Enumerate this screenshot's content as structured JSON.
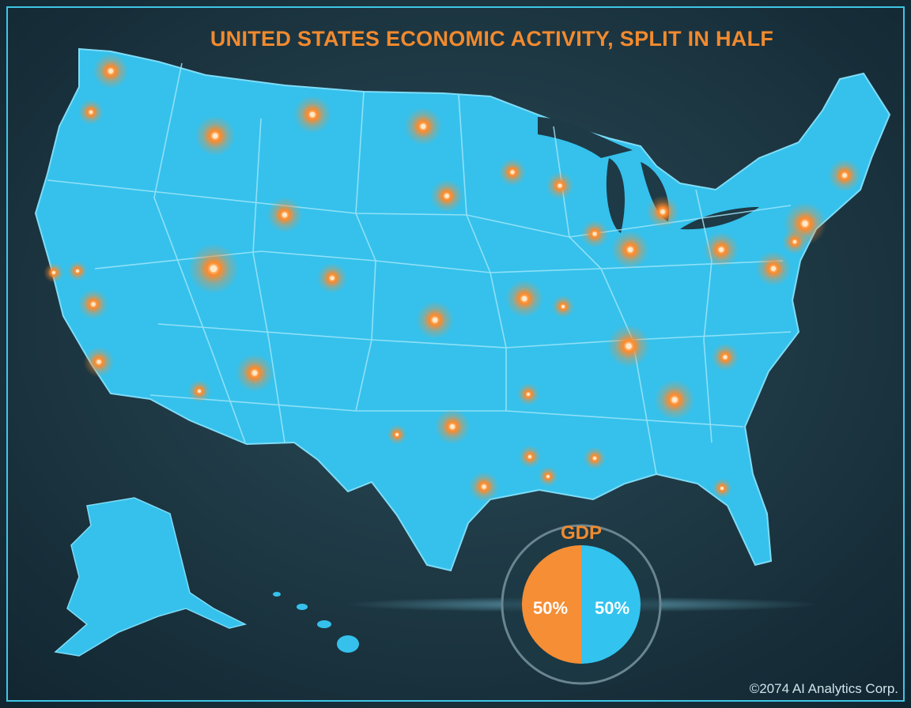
{
  "header": {
    "title": "UNITED STATES ECONOMIC ACTIVITY, SPLIT IN HALF"
  },
  "chart_data": {
    "type": "pie",
    "title": "GDP",
    "values": [
      50,
      50
    ],
    "value_labels": [
      "50%",
      "50%"
    ],
    "colors": [
      "#33c3ef",
      "#f58e35"
    ]
  },
  "footer": {
    "text": "©2074 AI Analytics Corp."
  }
}
